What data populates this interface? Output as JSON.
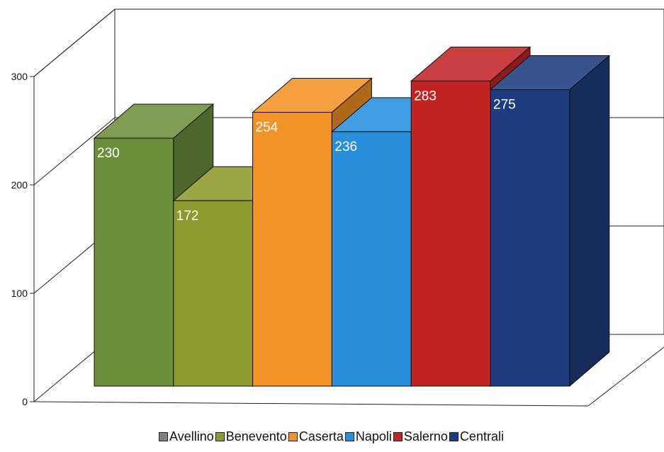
{
  "chart_data": {
    "type": "bar",
    "three_d": true,
    "categories": [
      "Avellino",
      "Benevento",
      "Caserta",
      "Napoli",
      "Salerno",
      "Centrali"
    ],
    "values": [
      230,
      172,
      254,
      236,
      283,
      275
    ],
    "colors": [
      "#6d8e3a",
      "#8e9a2e",
      "#f39226",
      "#2690dc",
      "#c22424",
      "#1d3d80"
    ],
    "data_labels": [
      "230",
      "172",
      "254",
      "236",
      "283",
      "275"
    ],
    "yticks": [
      "0",
      "100",
      "200",
      "300"
    ],
    "ylim": [
      0,
      300
    ],
    "grid": true,
    "legend_position": "bottom",
    "title": "",
    "xlabel": "",
    "ylabel": ""
  },
  "legend": [
    {
      "label": "Avellino",
      "color": "#808080"
    },
    {
      "label": "Benevento",
      "color": "#8e9a2e"
    },
    {
      "label": "Caserta",
      "color": "#f39226"
    },
    {
      "label": "Napoli",
      "color": "#2690dc"
    },
    {
      "label": "Salerno",
      "color": "#c22424"
    },
    {
      "label": "Centrali",
      "color": "#1d3d80"
    }
  ]
}
